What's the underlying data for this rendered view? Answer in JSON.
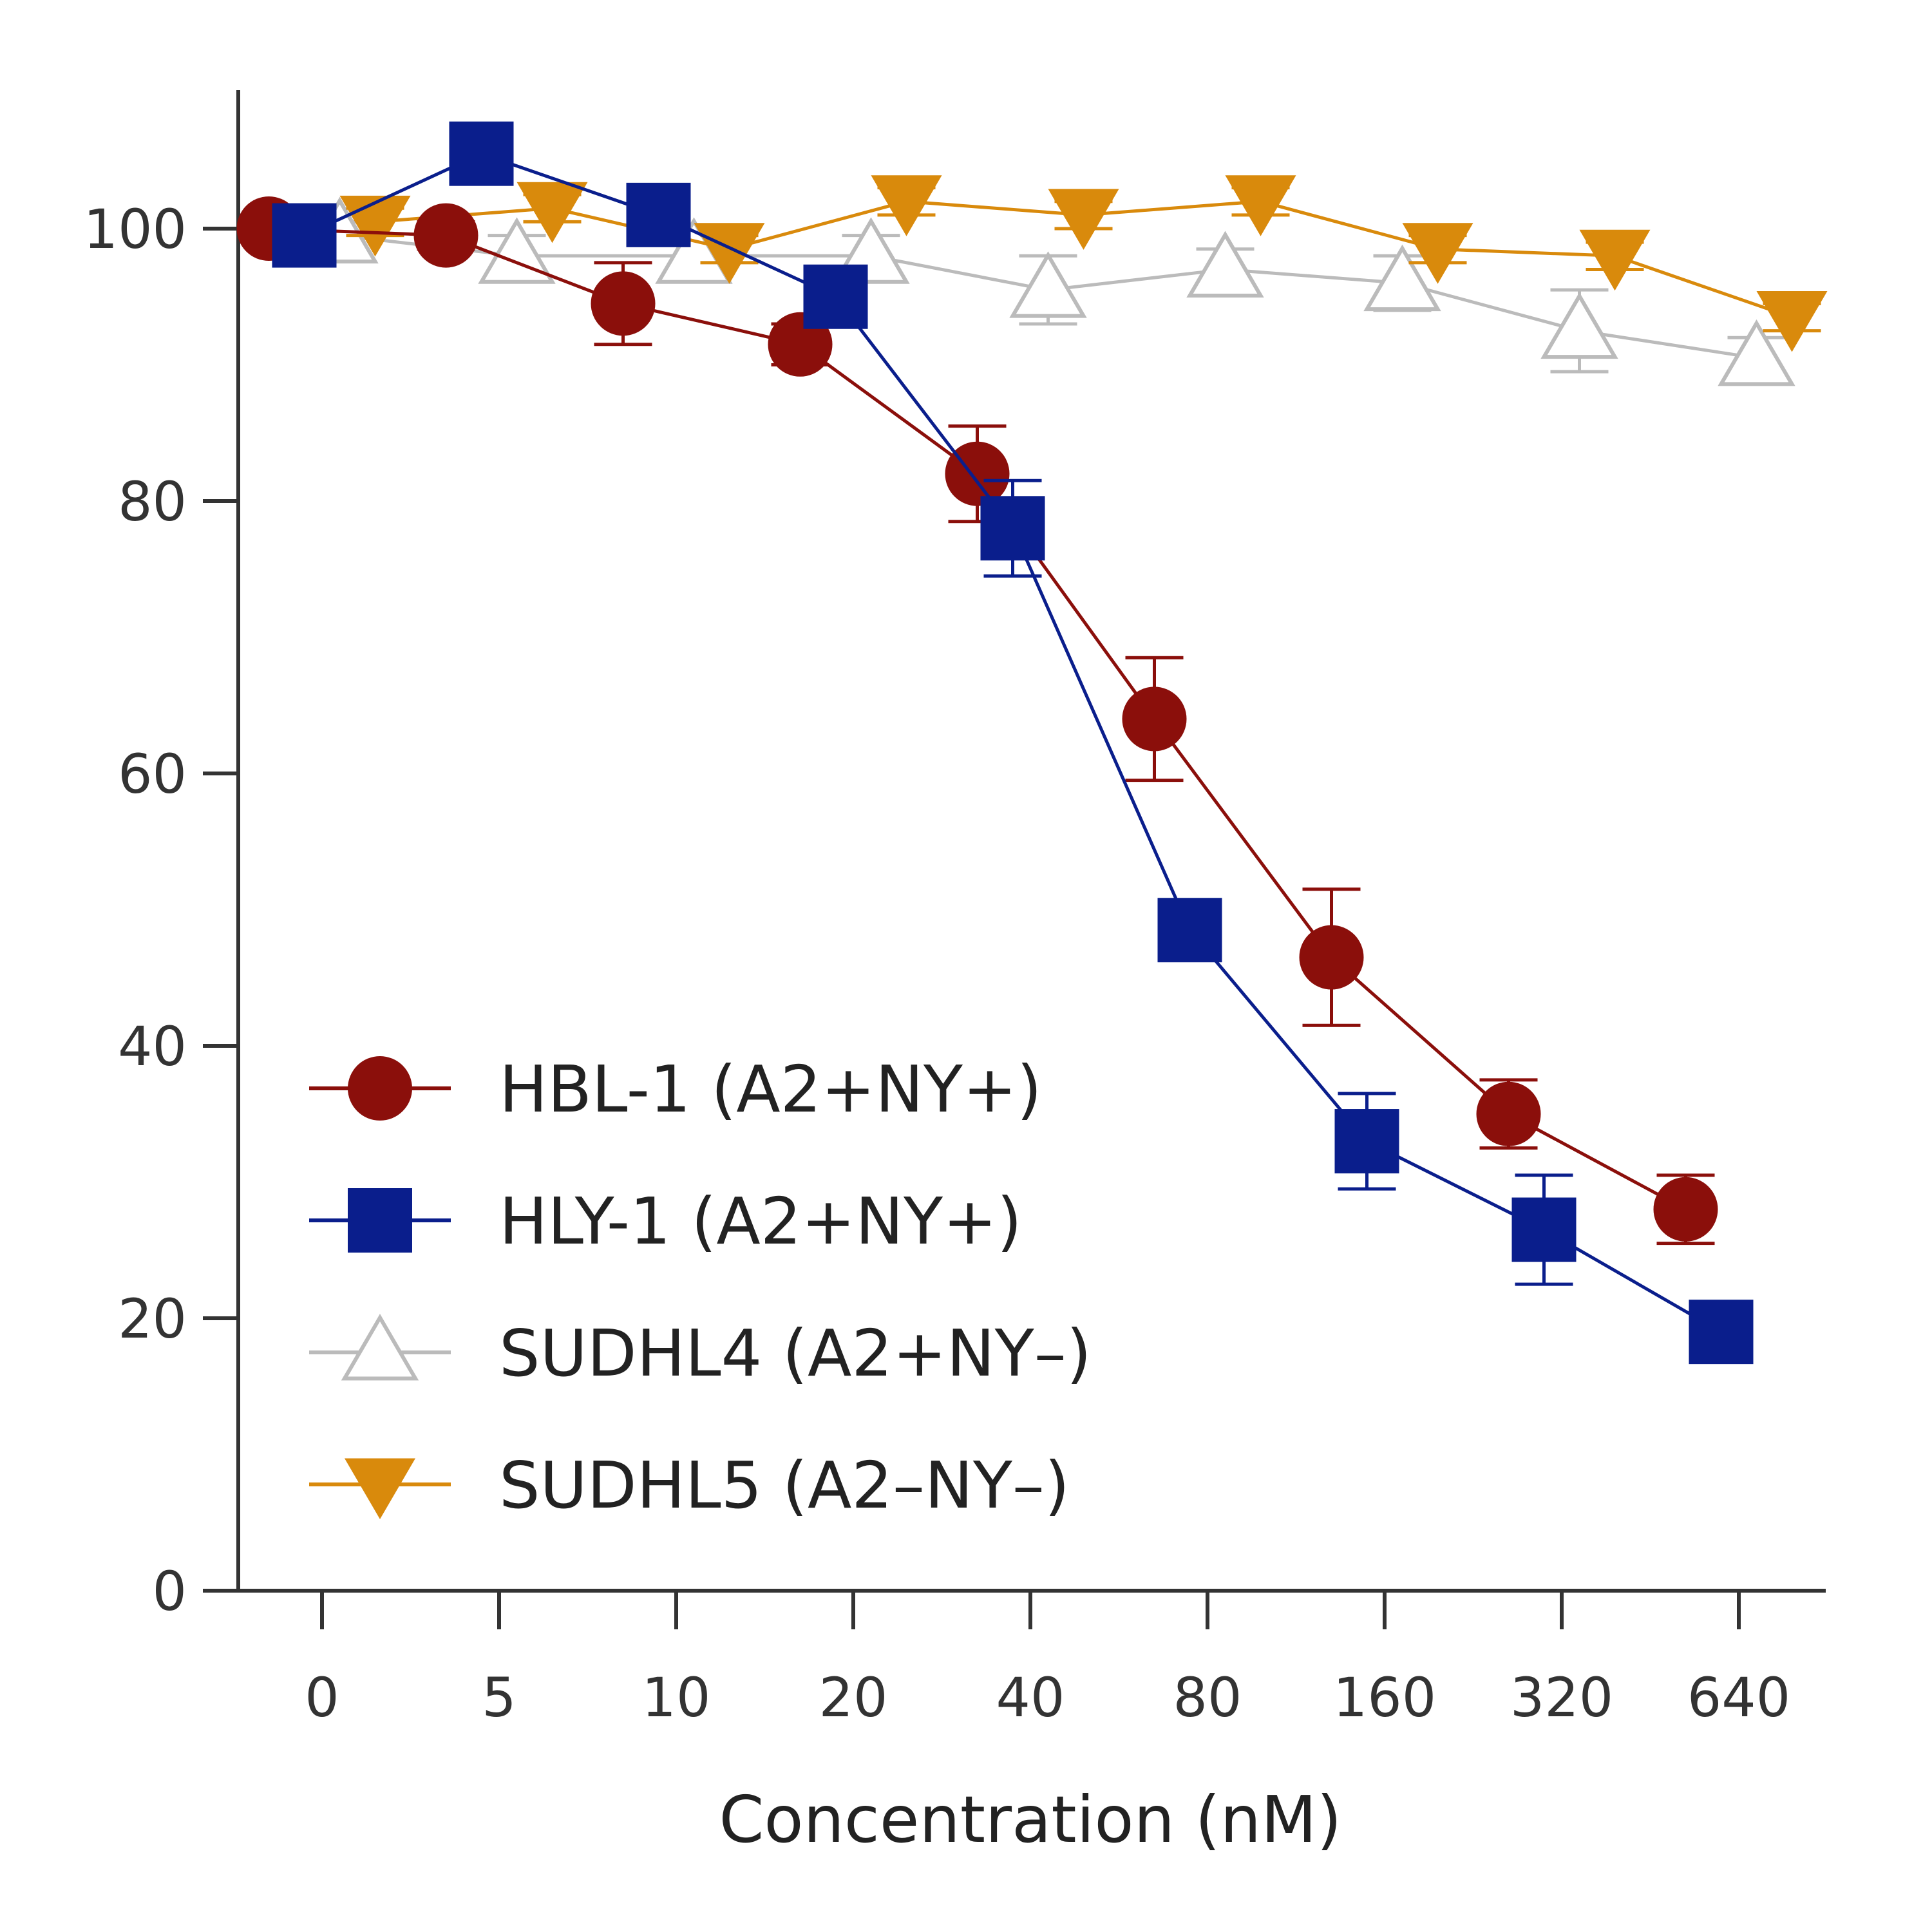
{
  "chart_data": {
    "type": "line",
    "title": "",
    "xlabel": "Concentration (nM)",
    "ylabel": "",
    "x_categories": [
      "0",
      "5",
      "10",
      "20",
      "40",
      "80",
      "160",
      "320",
      "640"
    ],
    "ylim": [
      0,
      110
    ],
    "yticks": [
      0,
      20,
      40,
      60,
      80,
      100
    ],
    "grid": false,
    "legend_position": "lower-left",
    "series": [
      {
        "name": "HBL-1 (A2+NY+)",
        "color": "#8B0F0B",
        "marker": "circle",
        "x_offset": -0.3,
        "values": [
          100,
          99.5,
          94.5,
          91.5,
          82,
          64,
          46.5,
          35,
          28
        ],
        "errors": [
          0.5,
          1,
          3,
          1.5,
          3.5,
          4.5,
          5,
          2.5,
          2.5
        ]
      },
      {
        "name": "HLY-1 (A2+NY+)",
        "color": "#0A1E8C",
        "marker": "square",
        "x_offset": -0.1,
        "values": [
          99.5,
          105.5,
          101,
          95,
          78,
          48.5,
          33,
          26.5,
          19
        ],
        "errors": [
          0.5,
          1,
          1,
          1,
          3.5,
          1,
          3.5,
          4,
          1
        ]
      },
      {
        "name": "SUDHL4 (A2+NY–)",
        "color": "#BBBBBB",
        "marker": "triangle-up-open",
        "x_offset": 0.1,
        "values": [
          99.5,
          98,
          98,
          98,
          95.5,
          97,
          96,
          92.5,
          90.5
        ],
        "errors": [
          1,
          1.5,
          1.5,
          1.5,
          2.5,
          1.5,
          2,
          3,
          1.5
        ]
      },
      {
        "name": "SUDHL5 (A2–NY–)",
        "color": "#D98A0C",
        "marker": "triangle-down",
        "x_offset": 0.3,
        "values": [
          100.5,
          101.5,
          98.5,
          102,
          101,
          102,
          98.5,
          98,
          93.5
        ],
        "errors": [
          1,
          1,
          1,
          1,
          1,
          1,
          1,
          1,
          1
        ]
      }
    ]
  }
}
